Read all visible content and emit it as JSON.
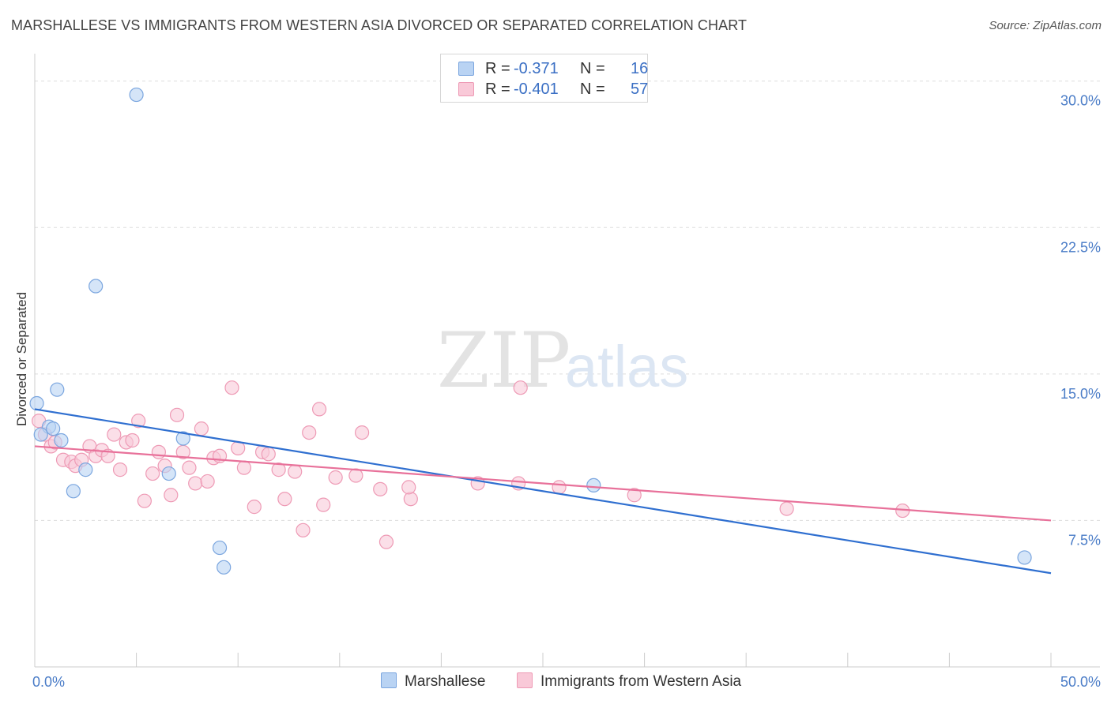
{
  "header": {
    "title": "MARSHALLESE VS IMMIGRANTS FROM WESTERN ASIA DIVORCED OR SEPARATED CORRELATION CHART",
    "source": "Source: ZipAtlas.com"
  },
  "watermark": {
    "zip": "ZIP",
    "atlas": "atlas"
  },
  "legend_top": {
    "rows": [
      {
        "r_label": "R =",
        "r_value": "-0.371",
        "n_label": "N =",
        "n_value": "16"
      },
      {
        "r_label": "R =",
        "r_value": "-0.401",
        "n_label": "N =",
        "n_value": "57"
      }
    ]
  },
  "legend_bottom": {
    "items": [
      "Marshallese",
      "Immigrants from Western Asia"
    ]
  },
  "colors": {
    "blue_fill": "#b9d3f3",
    "blue_stroke": "#7ba6df",
    "blue_line": "#2f6fd0",
    "pink_fill": "#f9c9d8",
    "pink_stroke": "#ee9ab5",
    "pink_line": "#e8719a",
    "tick_text": "#4a7cc7",
    "grid": "#dddddd"
  },
  "chart_data": {
    "type": "scatter",
    "title": "MARSHALLESE VS IMMIGRANTS FROM WESTERN ASIA DIVORCED OR SEPARATED CORRELATION CHART",
    "xlabel": "",
    "ylabel": "Divorced or Separated",
    "xlim": [
      0,
      50
    ],
    "ylim": [
      0,
      31
    ],
    "x_tick_labels": [
      "0.0%",
      "50.0%"
    ],
    "y_ticks": [
      7.5,
      15.0,
      22.5,
      30.0
    ],
    "y_tick_labels": [
      "7.5%",
      "15.0%",
      "22.5%",
      "30.0%"
    ],
    "grid": "horizontal dashed",
    "legend_position": "top-center",
    "series": [
      {
        "name": "Marshallese",
        "r": -0.371,
        "n": 16,
        "trend": {
          "x": [
            0,
            50
          ],
          "y": [
            13.2,
            4.8
          ]
        },
        "points": [
          [
            5.0,
            29.3
          ],
          [
            3.0,
            19.5
          ],
          [
            1.1,
            14.2
          ],
          [
            0.1,
            13.5
          ],
          [
            0.7,
            12.3
          ],
          [
            0.9,
            12.2
          ],
          [
            0.3,
            11.9
          ],
          [
            1.3,
            11.6
          ],
          [
            7.3,
            11.7
          ],
          [
            2.5,
            10.1
          ],
          [
            6.6,
            9.9
          ],
          [
            1.9,
            9.0
          ],
          [
            27.5,
            9.3
          ],
          [
            9.1,
            6.1
          ],
          [
            9.3,
            5.1
          ],
          [
            48.7,
            5.6
          ]
        ]
      },
      {
        "name": "Immigrants from Western Asia",
        "r": -0.401,
        "n": 57,
        "trend": {
          "x": [
            0,
            50
          ],
          "y": [
            11.3,
            7.5
          ]
        },
        "points": [
          [
            0.2,
            12.6
          ],
          [
            0.5,
            11.9
          ],
          [
            0.8,
            11.3
          ],
          [
            1.0,
            11.5
          ],
          [
            1.4,
            10.6
          ],
          [
            1.8,
            10.5
          ],
          [
            2.0,
            10.3
          ],
          [
            2.3,
            10.6
          ],
          [
            2.7,
            11.3
          ],
          [
            3.0,
            10.8
          ],
          [
            3.3,
            11.1
          ],
          [
            3.6,
            10.8
          ],
          [
            3.9,
            11.9
          ],
          [
            4.2,
            10.1
          ],
          [
            4.5,
            11.5
          ],
          [
            4.8,
            11.6
          ],
          [
            5.1,
            12.6
          ],
          [
            5.4,
            8.5
          ],
          [
            5.8,
            9.9
          ],
          [
            6.1,
            11.0
          ],
          [
            6.4,
            10.3
          ],
          [
            6.7,
            8.8
          ],
          [
            7.0,
            12.9
          ],
          [
            7.3,
            11.0
          ],
          [
            7.6,
            10.2
          ],
          [
            7.9,
            9.4
          ],
          [
            8.2,
            12.2
          ],
          [
            8.5,
            9.5
          ],
          [
            8.8,
            10.7
          ],
          [
            9.1,
            10.8
          ],
          [
            9.7,
            14.3
          ],
          [
            10.0,
            11.2
          ],
          [
            10.3,
            10.2
          ],
          [
            10.8,
            8.2
          ],
          [
            11.2,
            11.0
          ],
          [
            11.5,
            10.9
          ],
          [
            12.0,
            10.1
          ],
          [
            12.3,
            8.6
          ],
          [
            12.8,
            10.0
          ],
          [
            13.2,
            7.0
          ],
          [
            13.5,
            12.0
          ],
          [
            14.0,
            13.2
          ],
          [
            14.2,
            8.3
          ],
          [
            14.8,
            9.7
          ],
          [
            15.8,
            9.8
          ],
          [
            16.1,
            12.0
          ],
          [
            17.0,
            9.1
          ],
          [
            17.3,
            6.4
          ],
          [
            18.5,
            8.6
          ],
          [
            18.4,
            9.2
          ],
          [
            21.8,
            9.4
          ],
          [
            23.8,
            9.4
          ],
          [
            23.9,
            14.3
          ],
          [
            25.8,
            9.2
          ],
          [
            29.5,
            8.8
          ],
          [
            37.0,
            8.1
          ],
          [
            42.7,
            8.0
          ]
        ]
      }
    ]
  }
}
